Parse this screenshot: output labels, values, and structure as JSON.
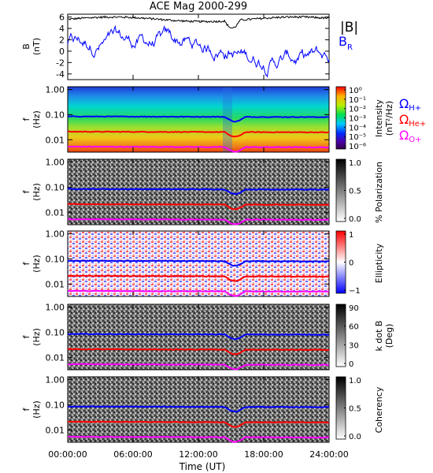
{
  "chart_data": {
    "type": "heatmap",
    "title": "ACE Mag 2000-299",
    "xlabel": "Time (UT)",
    "x_ticks": [
      "00:00:00",
      "06:00:00",
      "12:00:00",
      "18:00:00",
      "24:00:00"
    ],
    "panel1": {
      "ylabel_1": "B",
      "ylabel_2": "(nT)",
      "y_ticks": [
        "6",
        "4",
        "2",
        "0",
        "-2",
        "-4"
      ],
      "ylim": [
        -5,
        6.5
      ],
      "legend": [
        {
          "text": "|B|",
          "color": "#000000"
        },
        {
          "text": "B",
          "sub": "R",
          "color": "#0000ff"
        }
      ]
    },
    "freq_ticks": [
      "1.00",
      "0.10",
      "0.01"
    ],
    "freq_ylabel_1": "f",
    "freq_ylabel_2": "(Hz)",
    "gyro_lines": [
      {
        "name_main": "Ω",
        "name_sub": "H+",
        "color": "#0000ff",
        "freq_hz": 0.085
      },
      {
        "name_main": "Ω",
        "name_sub": "He+",
        "color": "#ff0000",
        "freq_hz": 0.021
      },
      {
        "name_main": "Ω",
        "name_sub": "O+",
        "color": "#ff00ff",
        "freq_hz": 0.0053
      }
    ],
    "intensity": {
      "ticks": [
        "10⁰",
        "10⁻¹",
        "10⁻²",
        "10⁻³",
        "10⁻⁴",
        "10⁻⁵",
        "10⁻⁶"
      ],
      "label_1": "Intensity",
      "label_2": "(nT²/Hz)"
    },
    "polarization": {
      "ticks": [
        "1.0",
        "0.5",
        "0.0"
      ],
      "label": "% Polarization"
    },
    "ellipticity": {
      "ticks": [
        "1",
        "0",
        "−1"
      ],
      "label": "Ellipticity"
    },
    "kdotb": {
      "ticks": [
        "90",
        "60",
        "30",
        "0"
      ],
      "label_1": "k dot B",
      "label_2": "(Deg)"
    },
    "coherency": {
      "ticks": [
        "1.0",
        "0.5",
        "0.0"
      ],
      "label": "Coherency"
    }
  }
}
